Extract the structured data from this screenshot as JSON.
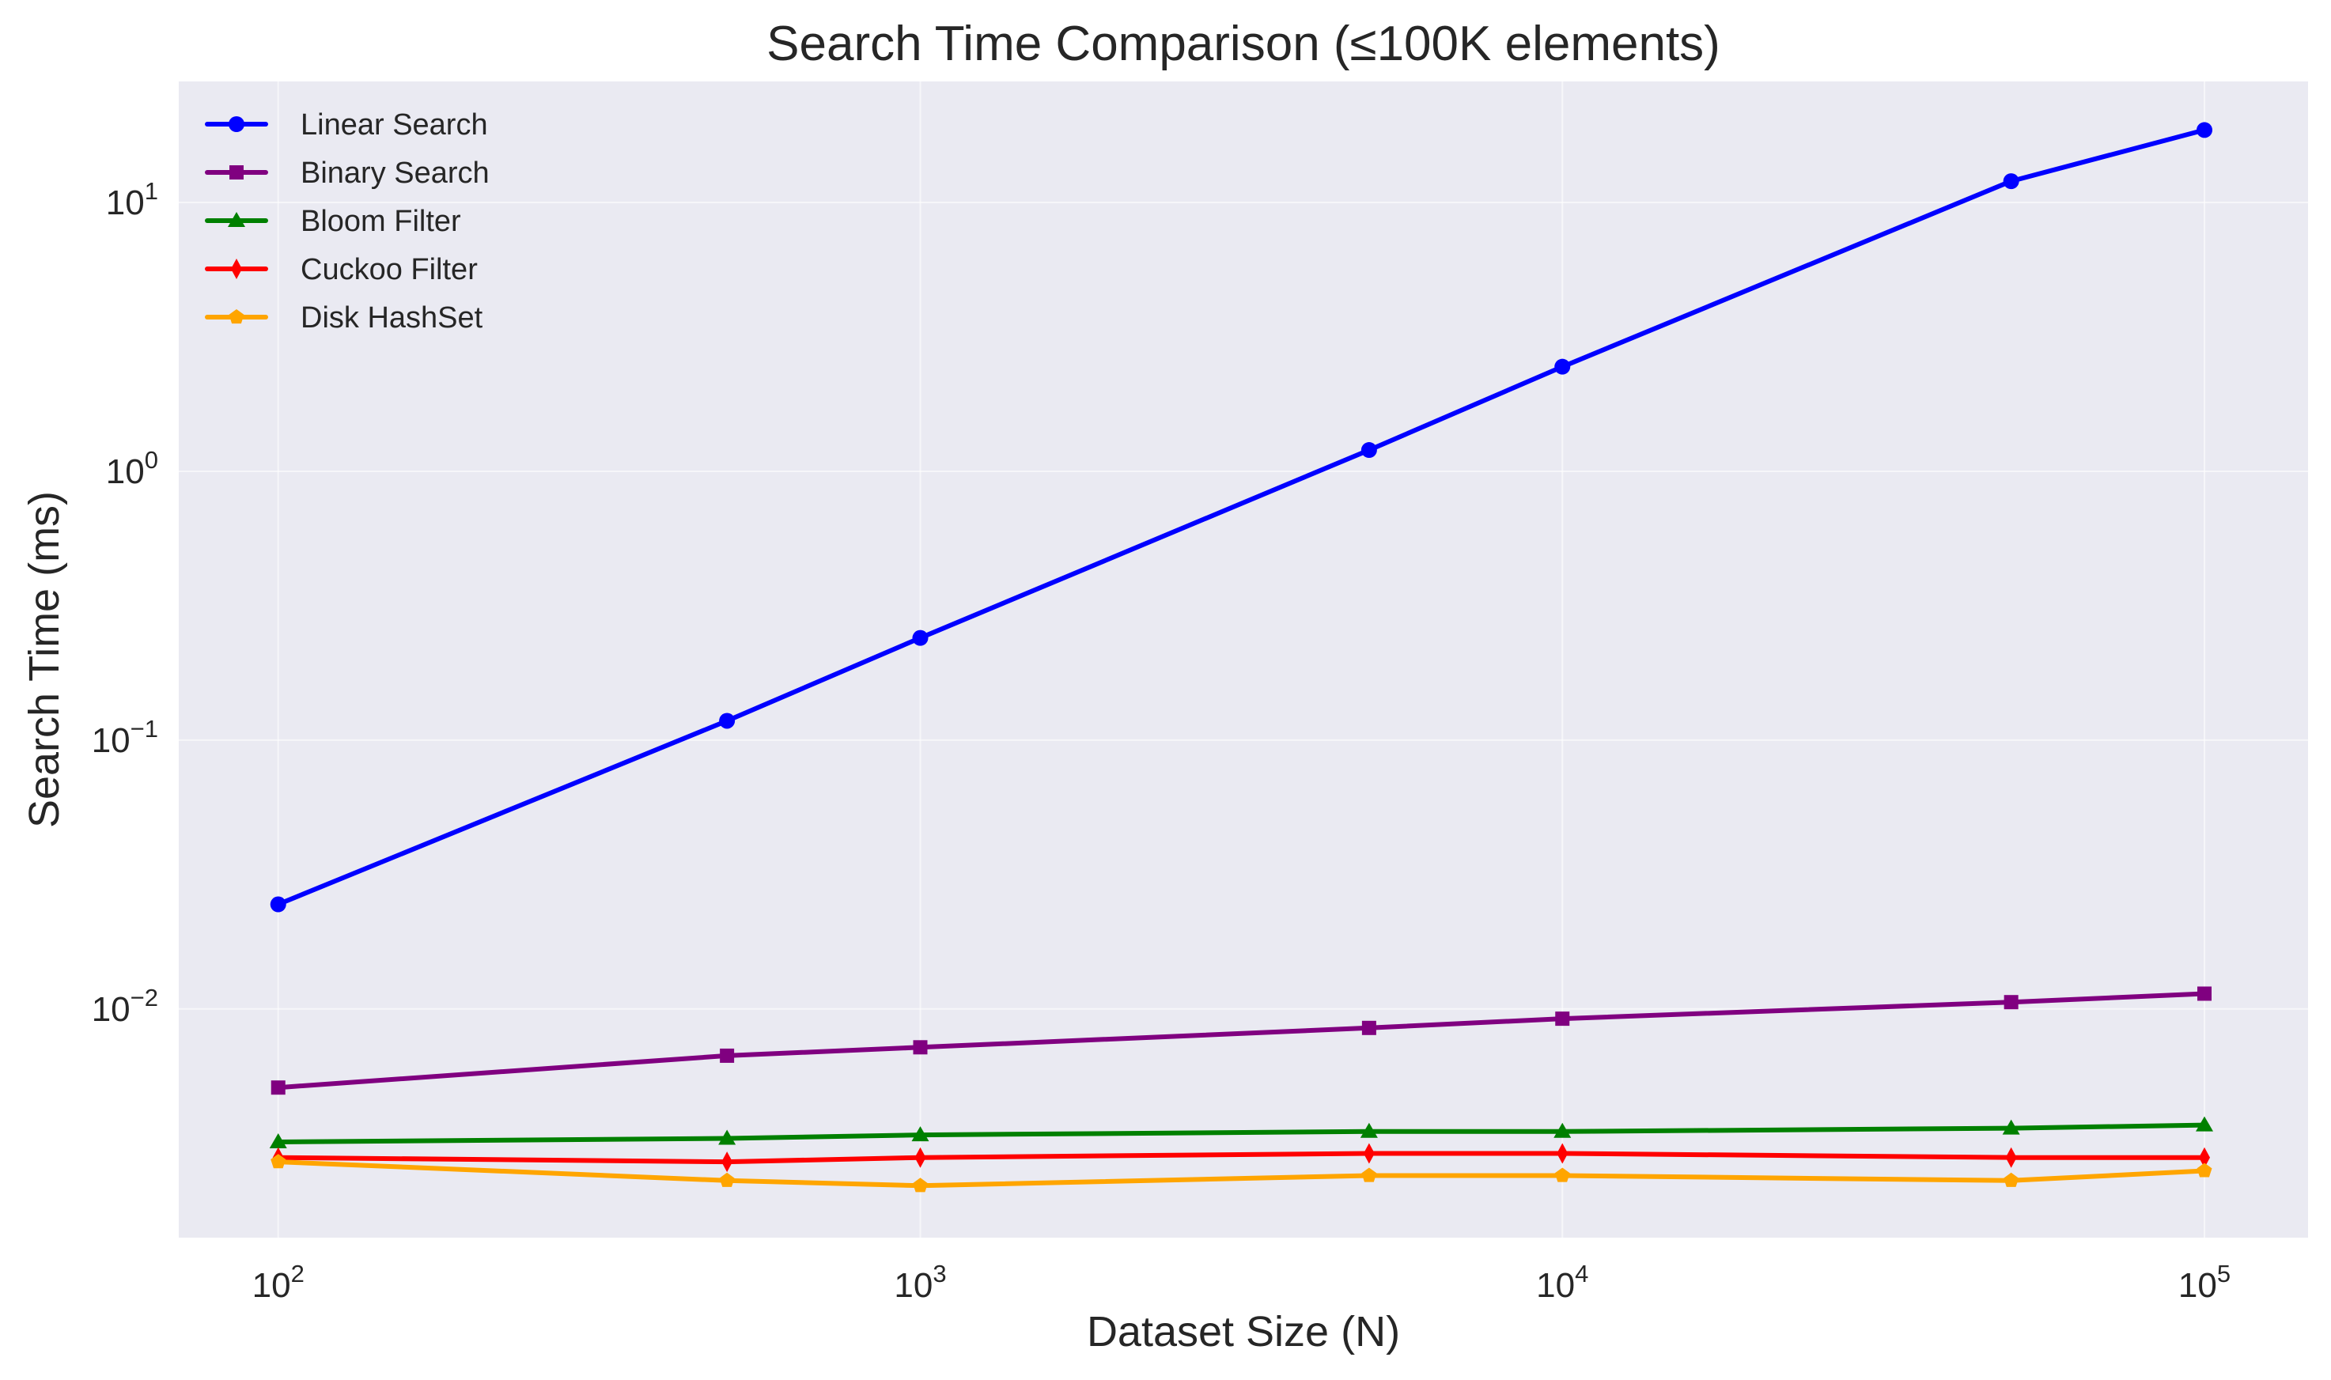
{
  "chart_data": {
    "type": "line",
    "title": "Search Time Comparison (≤100K elements)",
    "xlabel": "Dataset Size (N)",
    "ylabel": "Search Time (ms)",
    "xscale": "log",
    "yscale": "log",
    "xlim": [
      70,
      145000
    ],
    "ylim": [
      0.00141,
      28.2
    ],
    "grid": true,
    "legend_position": "top-left",
    "background_color": "#EAEAF2",
    "x_ticks": [
      {
        "value": 100,
        "base": "10",
        "exp": "2"
      },
      {
        "value": 1000,
        "base": "10",
        "exp": "3"
      },
      {
        "value": 10000,
        "base": "10",
        "exp": "4"
      },
      {
        "value": 100000,
        "base": "10",
        "exp": "5"
      }
    ],
    "y_ticks": [
      {
        "value": 0.01,
        "base": "10",
        "exp": "−2"
      },
      {
        "value": 0.1,
        "base": "10",
        "exp": "−1"
      },
      {
        "value": 1,
        "base": "10",
        "exp": "0"
      },
      {
        "value": 10,
        "base": "10",
        "exp": "1"
      }
    ],
    "x": [
      100,
      500,
      1000,
      5000,
      10000,
      50000,
      100000
    ],
    "series": [
      {
        "name": "Linear Search",
        "color": "#0000FF",
        "marker": "circle",
        "values": [
          0.0245,
          0.118,
          0.24,
          1.2,
          2.45,
          12.0,
          18.6
        ]
      },
      {
        "name": "Binary Search",
        "color": "#800080",
        "marker": "square",
        "values": [
          0.0051,
          0.0067,
          0.0072,
          0.0085,
          0.0092,
          0.0106,
          0.0114
        ]
      },
      {
        "name": "Bloom Filter",
        "color": "#008000",
        "marker": "triangle",
        "values": [
          0.0032,
          0.0033,
          0.0034,
          0.0035,
          0.0035,
          0.0036,
          0.0037
        ]
      },
      {
        "name": "Cuckoo Filter",
        "color": "#FF0000",
        "marker": "thin_diamond",
        "values": [
          0.0028,
          0.0027,
          0.0028,
          0.0029,
          0.0029,
          0.0028,
          0.0028
        ]
      },
      {
        "name": "Disk HashSet",
        "color": "#FFA500",
        "marker": "pentagon",
        "values": [
          0.0027,
          0.0023,
          0.0022,
          0.0024,
          0.0024,
          0.0023,
          0.0025
        ]
      }
    ]
  }
}
